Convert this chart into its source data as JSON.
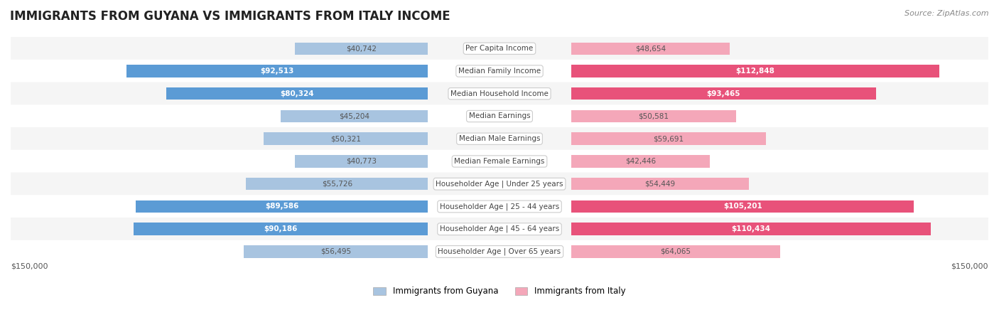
{
  "title": "IMMIGRANTS FROM GUYANA VS IMMIGRANTS FROM ITALY INCOME",
  "source": "Source: ZipAtlas.com",
  "categories": [
    "Per Capita Income",
    "Median Family Income",
    "Median Household Income",
    "Median Earnings",
    "Median Male Earnings",
    "Median Female Earnings",
    "Householder Age | Under 25 years",
    "Householder Age | 25 - 44 years",
    "Householder Age | 45 - 64 years",
    "Householder Age | Over 65 years"
  ],
  "guyana_values": [
    40742,
    92513,
    80324,
    45204,
    50321,
    40773,
    55726,
    89586,
    90186,
    56495
  ],
  "italy_values": [
    48654,
    112848,
    93465,
    50581,
    59691,
    42446,
    54449,
    105201,
    110434,
    64065
  ],
  "guyana_labels": [
    "$40,742",
    "$92,513",
    "$80,324",
    "$45,204",
    "$50,321",
    "$40,773",
    "$55,726",
    "$89,586",
    "$90,186",
    "$56,495"
  ],
  "italy_labels": [
    "$48,654",
    "$112,848",
    "$93,465",
    "$50,581",
    "$59,691",
    "$42,446",
    "$54,449",
    "$105,201",
    "$110,434",
    "$64,065"
  ],
  "guyana_color_light": "#a8c4e0",
  "guyana_color_dark": "#5b9bd5",
  "italy_color_light": "#f4a7b9",
  "italy_color_dark": "#e8527a",
  "label_color_dark_bg": "#ffffff",
  "label_color_light_bg": "#555555",
  "max_value": 150000,
  "row_bg_light": "#f5f5f5",
  "row_bg_white": "#ffffff",
  "legend_guyana": "Immigrants from Guyana",
  "legend_italy": "Immigrants from Italy",
  "axis_label_left": "$150,000",
  "axis_label_right": "$150,000",
  "guyana_dark_threshold": 70000,
  "italy_dark_threshold": 85000
}
